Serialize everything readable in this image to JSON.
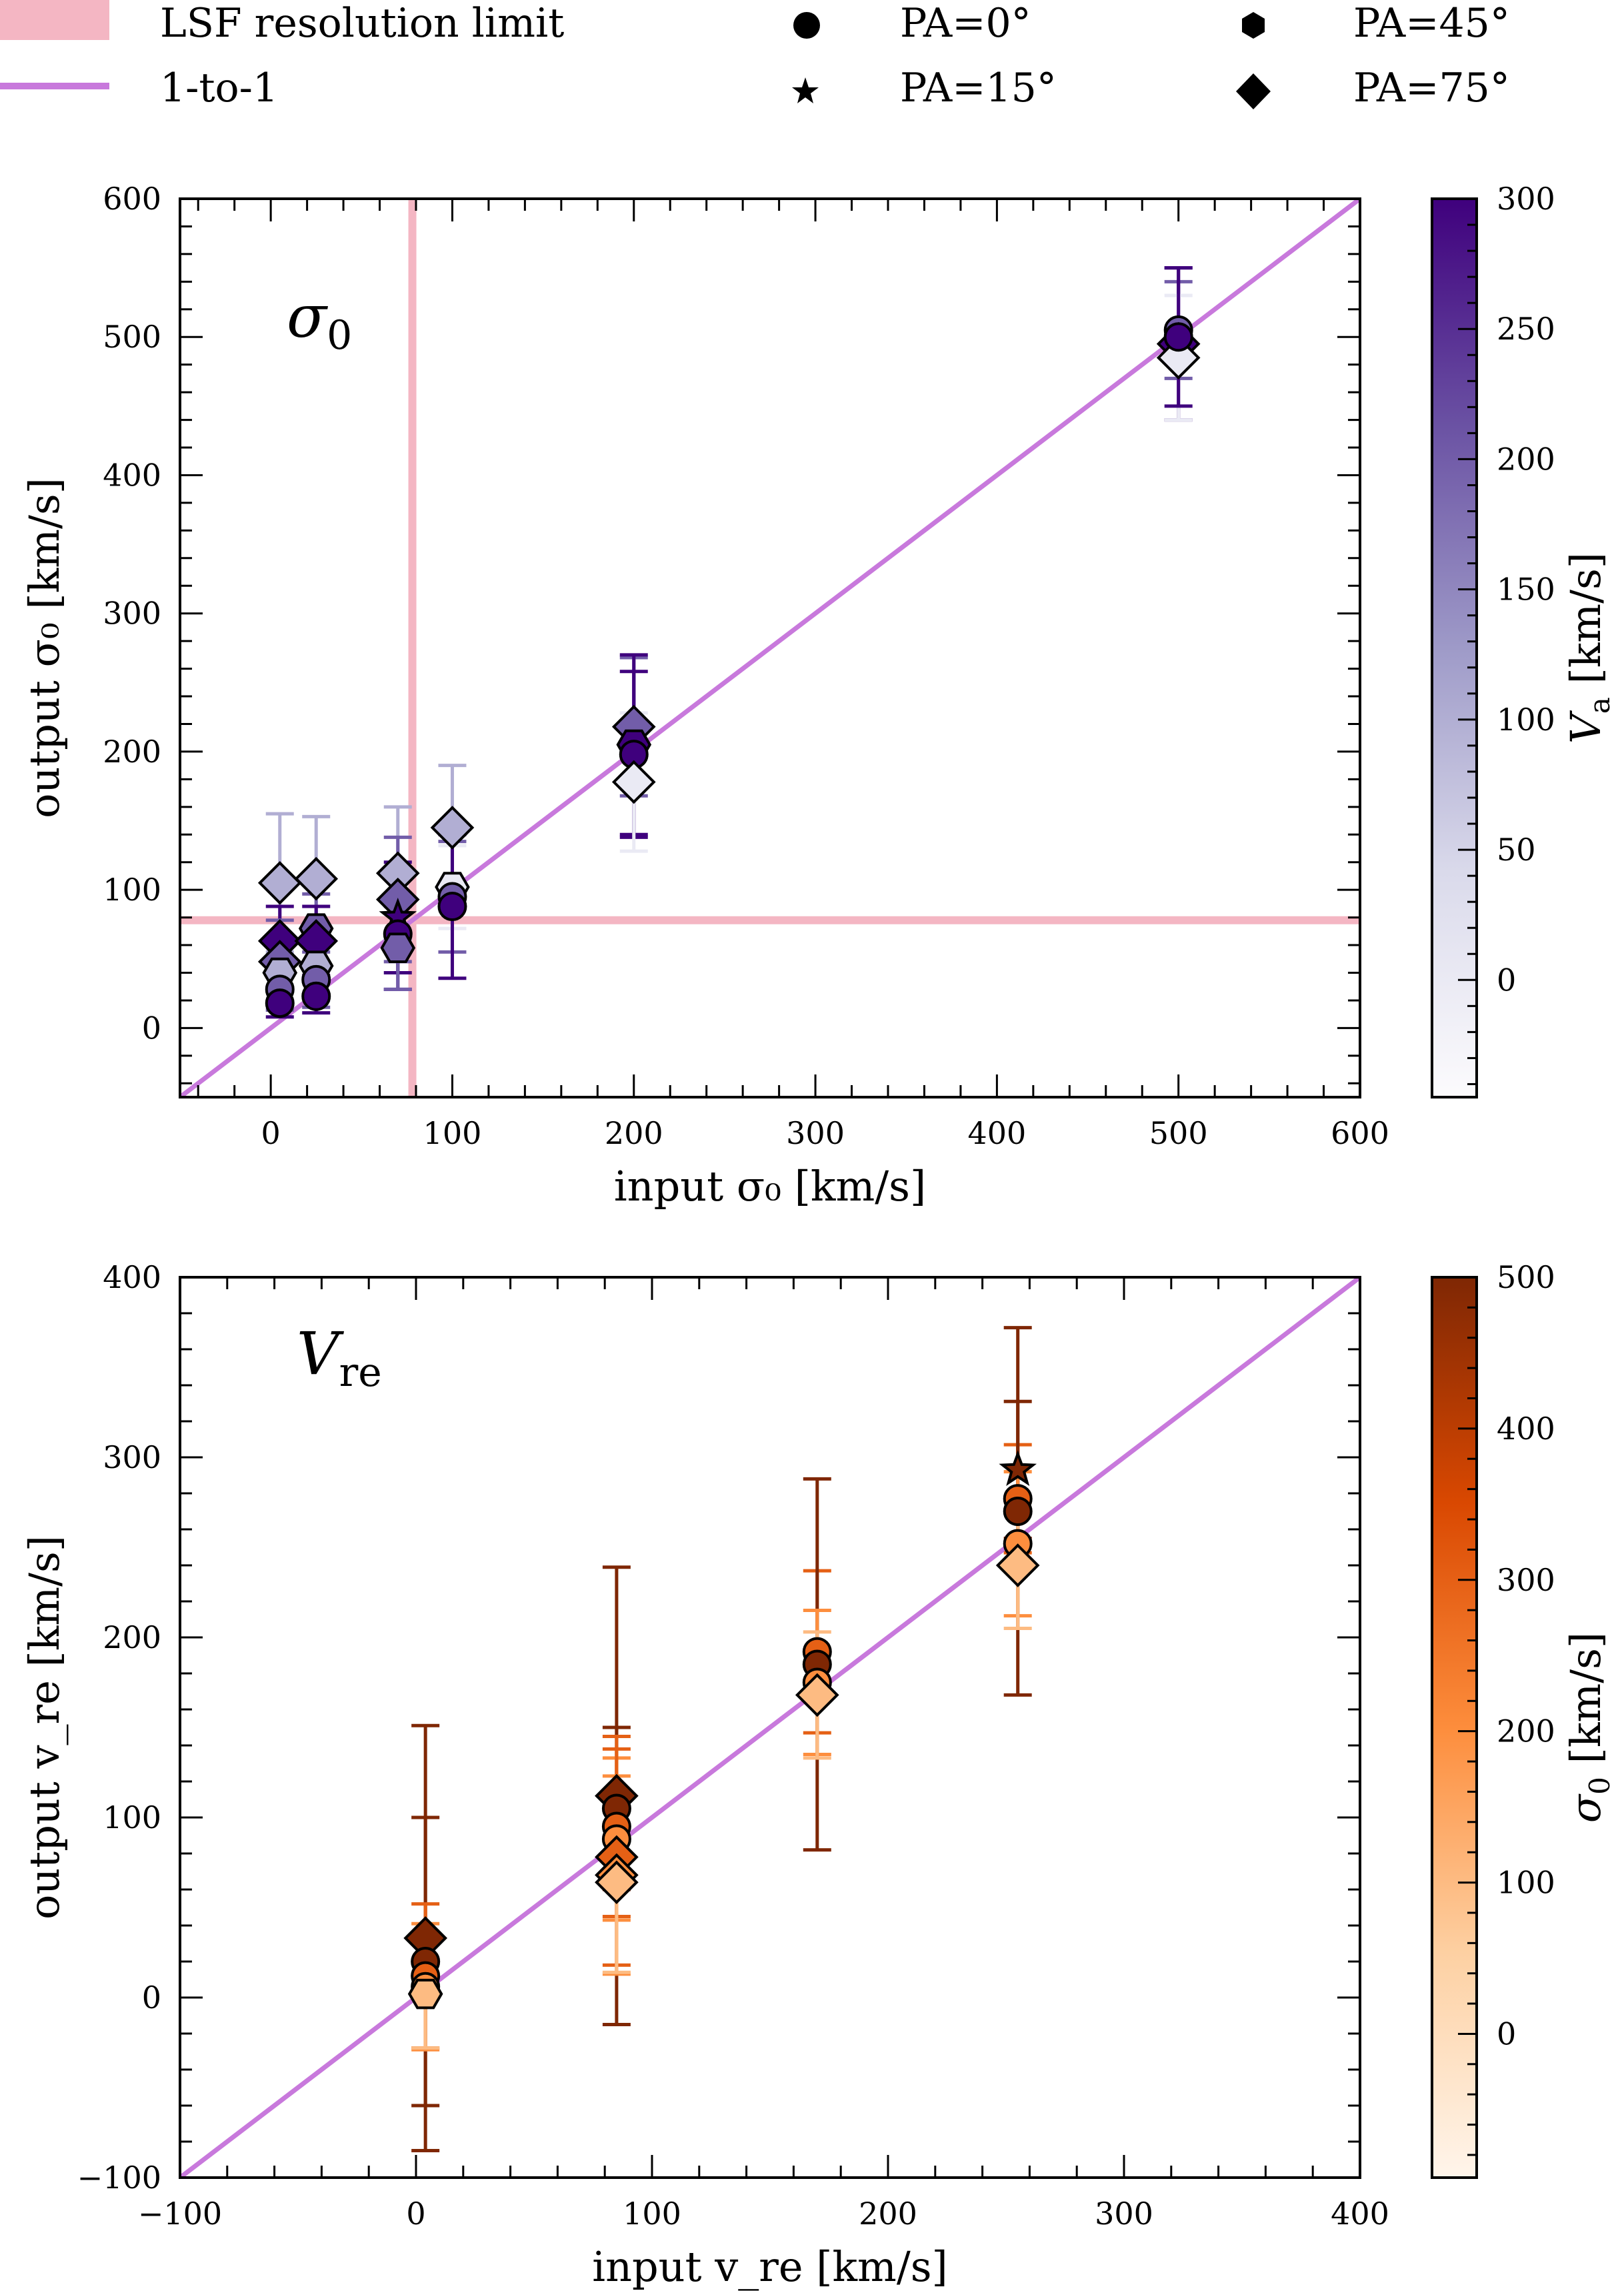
{
  "legend": {
    "lsf_label": "LSF resolution limit",
    "one_to_one_label": "1-to-1",
    "markers": [
      {
        "shape": "circle",
        "label": "PA=0°"
      },
      {
        "shape": "star",
        "label": "PA=15°"
      },
      {
        "shape": "hexagon",
        "label": "PA=45°"
      },
      {
        "shape": "diamond",
        "label": "PA=75°"
      }
    ]
  },
  "colors": {
    "lsf": "#f4b6c3",
    "one_to_one": "#c879dc",
    "purple_high": "#3f007d",
    "purple_low": "#fcfbfd",
    "orange_high": "#7f2704",
    "orange_low": "#fff5eb"
  },
  "chart_data": [
    {
      "type": "scatter",
      "panel_label": "σ",
      "panel_label_sub": "0",
      "xlabel": "input σ₀ [km/s]",
      "ylabel": "output σ₀ [km/s]",
      "xlim": [
        -50,
        600
      ],
      "ylim": [
        -50,
        600
      ],
      "xticks": [
        "0",
        "100",
        "200",
        "300",
        "400",
        "500",
        "600"
      ],
      "xtick_values": [
        0,
        100,
        200,
        300,
        400,
        500,
        600
      ],
      "yticks": [
        "0",
        "100",
        "200",
        "300",
        "400",
        "500",
        "600"
      ],
      "ytick_values": [
        0,
        100,
        200,
        300,
        400,
        500,
        600
      ],
      "lsf_limit": 78,
      "lsf_lines": [
        "vertical",
        "horizontal"
      ],
      "colorbar": {
        "label": "V",
        "label_sub": "a",
        "label_unit": " [km/s]",
        "range": [
          -45,
          300
        ],
        "ticks": [
          "0",
          "50",
          "100",
          "150",
          "200",
          "250",
          "300"
        ],
        "tick_values": [
          0,
          50,
          100,
          150,
          200,
          250,
          300
        ],
        "cmap": "purples"
      },
      "points": [
        {
          "x": 5,
          "y": 105,
          "err": 50,
          "c": 100,
          "shape": "diamond"
        },
        {
          "x": 5,
          "y": 63,
          "err": 25,
          "c": 300,
          "shape": "diamond"
        },
        {
          "x": 5,
          "y": 48,
          "err": 30,
          "c": 200,
          "shape": "diamond"
        },
        {
          "x": 5,
          "y": 40,
          "err": 25,
          "c": 100,
          "shape": "hexagon"
        },
        {
          "x": 5,
          "y": 28,
          "err": 15,
          "c": 200,
          "shape": "circle"
        },
        {
          "x": 5,
          "y": 18,
          "err": 10,
          "c": 300,
          "shape": "circle"
        },
        {
          "x": 25,
          "y": 108,
          "err": 45,
          "c": 100,
          "shape": "diamond"
        },
        {
          "x": 25,
          "y": 72,
          "err": 25,
          "c": 200,
          "shape": "hexagon"
        },
        {
          "x": 25,
          "y": 63,
          "err": 25,
          "c": 300,
          "shape": "diamond"
        },
        {
          "x": 25,
          "y": 45,
          "err": 25,
          "c": 100,
          "shape": "hexagon"
        },
        {
          "x": 25,
          "y": 35,
          "err": 20,
          "c": 200,
          "shape": "circle"
        },
        {
          "x": 25,
          "y": 23,
          "err": 12,
          "c": 300,
          "shape": "circle"
        },
        {
          "x": 70,
          "y": 112,
          "err": 48,
          "c": 100,
          "shape": "diamond"
        },
        {
          "x": 70,
          "y": 93,
          "err": 45,
          "c": 200,
          "shape": "diamond"
        },
        {
          "x": 70,
          "y": 80,
          "err": 40,
          "c": 300,
          "shape": "star"
        },
        {
          "x": 70,
          "y": 68,
          "err": 40,
          "c": 300,
          "shape": "circle"
        },
        {
          "x": 70,
          "y": 58,
          "err": 30,
          "c": 200,
          "shape": "hexagon"
        },
        {
          "x": 100,
          "y": 145,
          "err": 45,
          "c": 100,
          "shape": "diamond"
        },
        {
          "x": 100,
          "y": 102,
          "err": 30,
          "c": 0,
          "shape": "hexagon"
        },
        {
          "x": 100,
          "y": 95,
          "err": 40,
          "c": 200,
          "shape": "circle"
        },
        {
          "x": 100,
          "y": 88,
          "err": 52,
          "c": 300,
          "shape": "circle"
        },
        {
          "x": 200,
          "y": 218,
          "err": 50,
          "c": 200,
          "shape": "diamond"
        },
        {
          "x": 200,
          "y": 205,
          "err": 65,
          "c": 300,
          "shape": "hexagon"
        },
        {
          "x": 200,
          "y": 198,
          "err": 60,
          "c": 300,
          "shape": "circle"
        },
        {
          "x": 200,
          "y": 178,
          "err": 50,
          "c": 0,
          "shape": "diamond"
        },
        {
          "x": 500,
          "y": 505,
          "err": 35,
          "c": 200,
          "shape": "circle"
        },
        {
          "x": 500,
          "y": 495,
          "err": 55,
          "c": 300,
          "shape": "diamond"
        },
        {
          "x": 500,
          "y": 485,
          "err": 45,
          "c": 0,
          "shape": "diamond"
        },
        {
          "x": 500,
          "y": 500,
          "err": 50,
          "c": 300,
          "shape": "circle"
        }
      ]
    },
    {
      "type": "scatter",
      "panel_label": "V",
      "panel_label_sub": "re",
      "xlabel": "input v_re [km/s]",
      "ylabel": "output v_re [km/s]",
      "xlim": [
        -100,
        400
      ],
      "ylim": [
        -100,
        400
      ],
      "xticks": [
        "−100",
        "0",
        "100",
        "200",
        "300",
        "400"
      ],
      "xtick_values": [
        -100,
        0,
        100,
        200,
        300,
        400
      ],
      "yticks": [
        "−100",
        "0",
        "100",
        "200",
        "300",
        "400"
      ],
      "ytick_values": [
        -100,
        0,
        100,
        200,
        300,
        400
      ],
      "colorbar": {
        "label": "σ",
        "label_sub": "0",
        "label_unit": " [km/s]",
        "range": [
          -95,
          500
        ],
        "ticks": [
          "0",
          "100",
          "200",
          "300",
          "400",
          "500"
        ],
        "tick_values": [
          0,
          100,
          200,
          300,
          400,
          500
        ],
        "cmap": "oranges"
      },
      "points": [
        {
          "x": 4,
          "y": 33,
          "err": 118,
          "c": 500,
          "shape": "diamond"
        },
        {
          "x": 4,
          "y": 20,
          "err": 80,
          "c": 500,
          "shape": "circle"
        },
        {
          "x": 4,
          "y": 12,
          "err": 40,
          "c": 300,
          "shape": "circle"
        },
        {
          "x": 4,
          "y": 6,
          "err": 35,
          "c": 200,
          "shape": "circle"
        },
        {
          "x": 4,
          "y": 2,
          "err": 30,
          "c": 100,
          "shape": "hexagon"
        },
        {
          "x": 85,
          "y": 112,
          "err": 127,
          "c": 500,
          "shape": "diamond"
        },
        {
          "x": 85,
          "y": 105,
          "err": 45,
          "c": 500,
          "shape": "circle"
        },
        {
          "x": 85,
          "y": 95,
          "err": 50,
          "c": 300,
          "shape": "circle"
        },
        {
          "x": 85,
          "y": 88,
          "err": 45,
          "c": 200,
          "shape": "circle"
        },
        {
          "x": 85,
          "y": 78,
          "err": 60,
          "c": 300,
          "shape": "diamond"
        },
        {
          "x": 85,
          "y": 68,
          "err": 55,
          "c": 200,
          "shape": "diamond"
        },
        {
          "x": 85,
          "y": 64,
          "err": 50,
          "c": 100,
          "shape": "diamond"
        },
        {
          "x": 170,
          "y": 192,
          "err": 45,
          "c": 300,
          "shape": "circle"
        },
        {
          "x": 170,
          "y": 185,
          "err": 103,
          "c": 500,
          "shape": "circle"
        },
        {
          "x": 170,
          "y": 175,
          "err": 40,
          "c": 200,
          "shape": "circle"
        },
        {
          "x": 170,
          "y": 168,
          "err": 35,
          "c": 100,
          "shape": "diamond"
        },
        {
          "x": 255,
          "y": 293,
          "err": 38,
          "c": 500,
          "shape": "star"
        },
        {
          "x": 255,
          "y": 277,
          "err": 30,
          "c": 300,
          "shape": "circle"
        },
        {
          "x": 255,
          "y": 270,
          "err": 102,
          "c": 500,
          "shape": "circle"
        },
        {
          "x": 255,
          "y": 252,
          "err": 40,
          "c": 200,
          "shape": "circle"
        },
        {
          "x": 255,
          "y": 240,
          "err": 35,
          "c": 100,
          "shape": "diamond"
        }
      ]
    }
  ]
}
